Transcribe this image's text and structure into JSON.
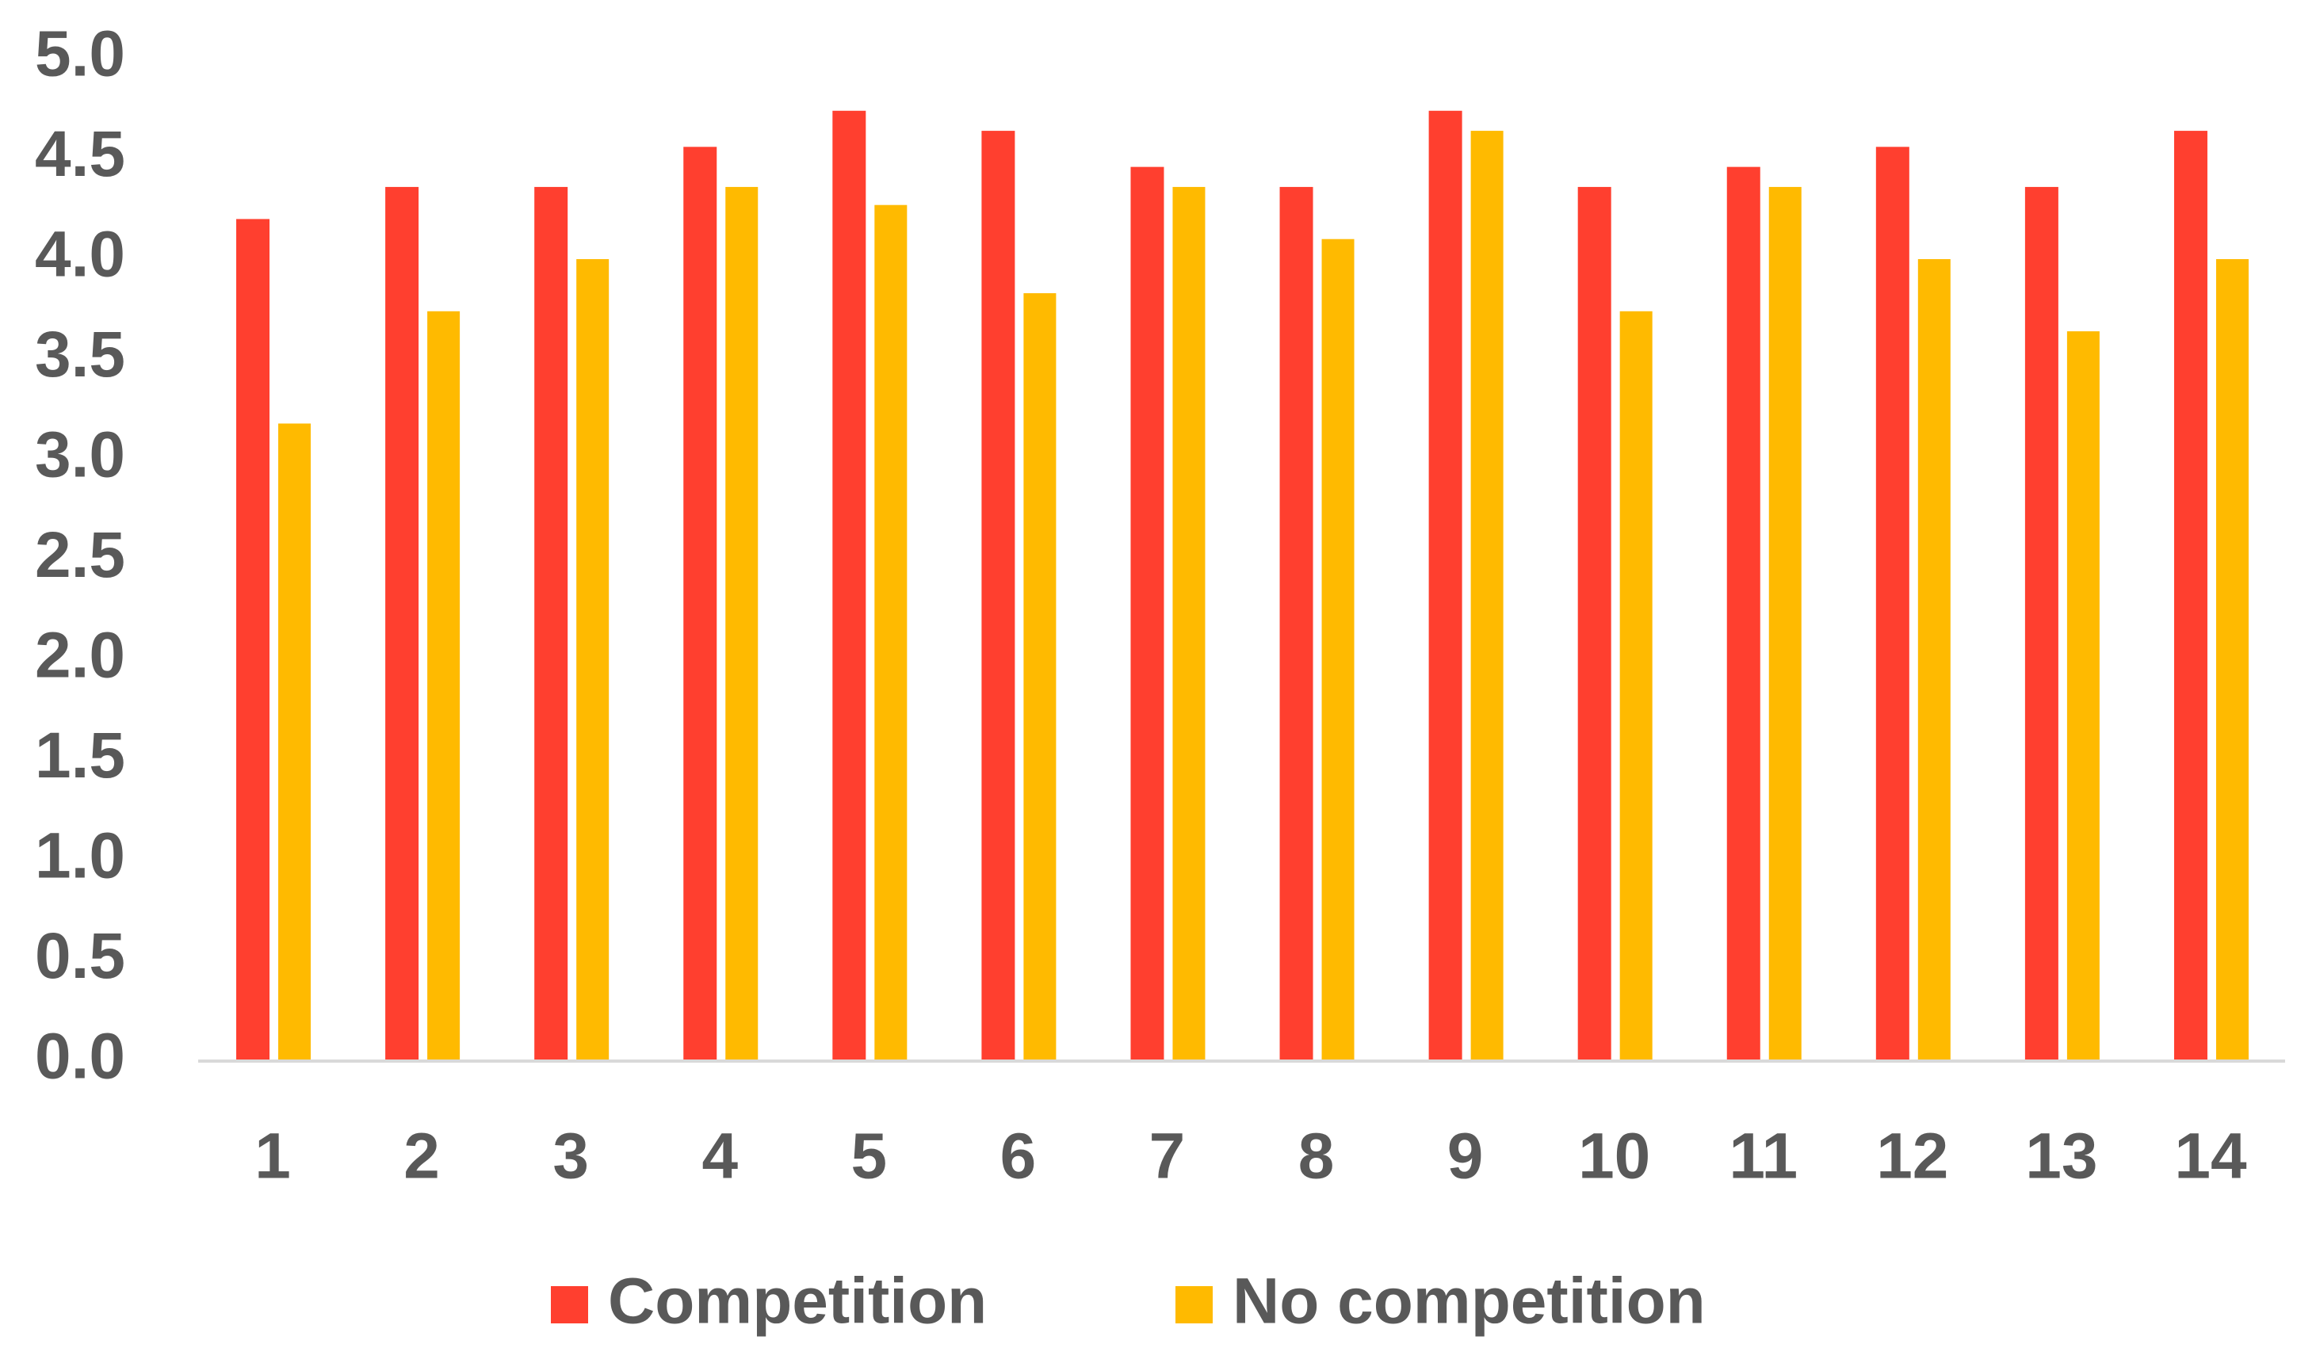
{
  "chart_data": {
    "type": "bar",
    "categories": [
      "1",
      "2",
      "3",
      "4",
      "5",
      "6",
      "7",
      "8",
      "9",
      "10",
      "11",
      "12",
      "13",
      "14"
    ],
    "series": [
      {
        "name": "Competition",
        "color": "#ff3f2f",
        "values": [
          4.2,
          4.36,
          4.36,
          4.56,
          4.74,
          4.64,
          4.46,
          4.36,
          4.74,
          4.36,
          4.46,
          4.56,
          4.36,
          4.64
        ]
      },
      {
        "name": "No competition",
        "color": "#ffba00",
        "values": [
          3.18,
          3.74,
          4.0,
          4.36,
          4.27,
          3.83,
          4.36,
          4.1,
          4.64,
          3.74,
          4.36,
          4.0,
          3.64,
          4.0
        ]
      }
    ],
    "ylim": [
      0,
      5
    ],
    "yticks": [
      {
        "value": 0,
        "label": "0.0"
      },
      {
        "value": 0.5,
        "label": "0.5"
      },
      {
        "value": 1,
        "label": "1.0"
      },
      {
        "value": 1.5,
        "label": "1.5"
      },
      {
        "value": 2,
        "label": "2.0"
      },
      {
        "value": 2.5,
        "label": "2.5"
      },
      {
        "value": 3,
        "label": "3.0"
      },
      {
        "value": 3.5,
        "label": "3.5"
      },
      {
        "value": 4,
        "label": "4.0"
      },
      {
        "value": 4.5,
        "label": "4.5"
      },
      {
        "value": 5,
        "label": "5.0"
      }
    ],
    "grid": false,
    "legend": "bottom"
  }
}
